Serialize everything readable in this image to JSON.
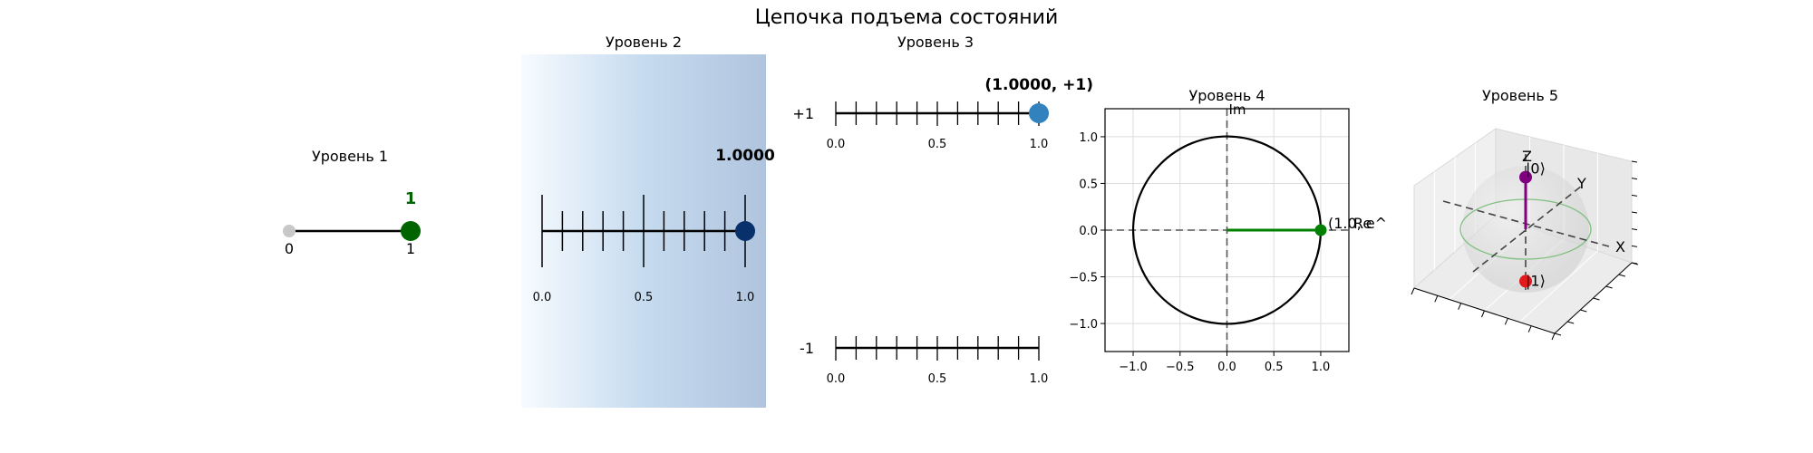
{
  "title": "Цепочка подъема состояний",
  "chart_data": [
    {
      "type": "scatter",
      "panel": "level-1",
      "title": "Уровень 1",
      "tick_labels": [
        "0",
        "1"
      ],
      "value": 1,
      "value_label": "1",
      "colors": {
        "active": "#006400",
        "inactive": "#c8c8c8"
      }
    },
    {
      "type": "scatter",
      "panel": "level-2",
      "title": "Уровень 2",
      "xlim": [
        0,
        1
      ],
      "tick_labels": [
        "0.0",
        "0.5",
        "1.0"
      ],
      "value": 1.0,
      "value_label": "1.0000",
      "colors": {
        "marker": "#08306b",
        "gradient_start": "#f7fbff",
        "gradient_mid": "#c6dbef",
        "gradient_end": "#b0c4de"
      }
    },
    {
      "type": "scatter",
      "panel": "level-3",
      "title": "Уровень 3",
      "xlim": [
        0,
        1
      ],
      "rows": [
        {
          "label": "+1",
          "tick_labels": [
            "0.0",
            "0.5",
            "1.0"
          ]
        },
        {
          "label": "-1",
          "tick_labels": [
            "0.0",
            "0.5",
            "1.0"
          ]
        }
      ],
      "point": {
        "row": "+1",
        "x": 1.0
      },
      "value_label": "(1.0000, +1)",
      "colors": {
        "marker": "#3182bd"
      }
    },
    {
      "type": "line",
      "panel": "level-4",
      "title": "Уровень 4",
      "xlim": [
        -1.3,
        1.3
      ],
      "ylim": [
        -1.3,
        1.3
      ],
      "x_ticks": [
        -1.0,
        -0.5,
        0.0,
        0.5,
        1.0
      ],
      "y_ticks": [
        -1.0,
        -0.5,
        0.0,
        0.5,
        1.0
      ],
      "x_tick_labels": [
        "−1.0",
        "−0.5",
        "0.0",
        "0.5",
        "1.0"
      ],
      "y_tick_labels": [
        "−1.0",
        "−0.5",
        "0.0",
        "0.5",
        "1.0"
      ],
      "axis_labels": {
        "im": "Im",
        "re": "Re"
      },
      "grid": true,
      "circle_radius": 1,
      "point": {
        "x": 1.0,
        "y": 0.0
      },
      "point_label": "(1.0, e^",
      "colors": {
        "vector": "#008000",
        "circle": "#000000"
      }
    },
    {
      "type": "scatter",
      "panel": "level-5",
      "title": "Уровень 5",
      "axis_labels": {
        "x": "X",
        "y": "Y",
        "z": "Z"
      },
      "poles": [
        {
          "label": "|0⟩",
          "z": 1
        },
        {
          "label": "|1⟩",
          "z": -1
        }
      ],
      "state": {
        "theta": 0,
        "phi": 0
      },
      "colors": {
        "state": "#800080",
        "pole_0": "#800080",
        "pole_1": "#e31a1c",
        "equator": "#7fbf7f"
      }
    }
  ]
}
